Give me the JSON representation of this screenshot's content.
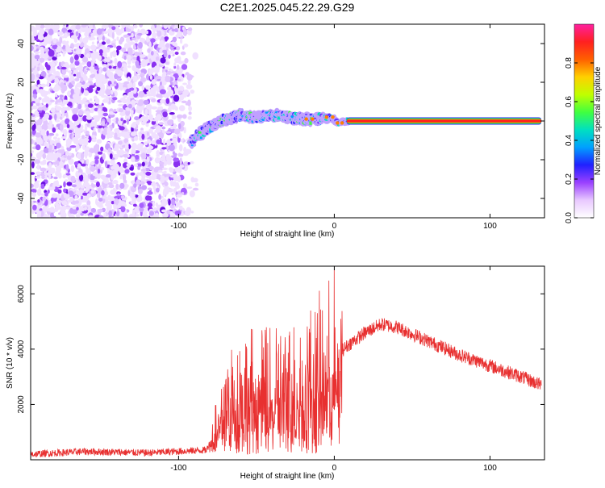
{
  "title": "C2E1.2025.045.22.29.G29",
  "chart_data": [
    {
      "type": "heatmap",
      "xlabel": "Height of straight line (km)",
      "ylabel": "Frequency (Hz)",
      "xlim": [
        -195,
        135
      ],
      "ylim": [
        -50,
        50
      ],
      "x_ticks": [
        -100,
        0,
        100
      ],
      "x_ticklabels": [
        "-100",
        "0",
        "100"
      ],
      "y_ticks": [
        -40,
        -20,
        0,
        20,
        40
      ],
      "y_ticklabels": [
        "-40",
        "-20",
        "0",
        "20",
        "40"
      ],
      "colorbar": {
        "label": "Normalized spectral amplitude",
        "range": [
          0,
          1
        ],
        "ticks": [
          0.0,
          0.2,
          0.4,
          0.6,
          0.8
        ],
        "ticklabels": [
          "0.0",
          "0.2",
          "0.4",
          "0.6",
          "0.8"
        ],
        "colors": [
          "#ffffff",
          "#e8c8ff",
          "#9a40ff",
          "#2020ff",
          "#00a0ff",
          "#00e0c0",
          "#40ff40",
          "#c0ff00",
          "#ffd000",
          "#ff6000",
          "#ff2020",
          "#ff20a0"
        ]
      },
      "noise_region": {
        "x_range": [
          -195,
          -88
        ],
        "y_range": [
          -50,
          50
        ]
      },
      "signal_trace": [
        [
          -92,
          -11
        ],
        [
          -85,
          -6
        ],
        [
          -78,
          -2
        ],
        [
          -70,
          1
        ],
        [
          -60,
          3
        ],
        [
          -50,
          2
        ],
        [
          -40,
          3
        ],
        [
          -30,
          2
        ],
        [
          -20,
          1
        ],
        [
          -10,
          1
        ],
        [
          -2,
          2
        ],
        [
          3,
          -1
        ],
        [
          8,
          0
        ],
        [
          20,
          0
        ],
        [
          60,
          0
        ],
        [
          100,
          0
        ],
        [
          133,
          0
        ]
      ],
      "grid": false
    },
    {
      "type": "line",
      "xlabel": "Height of straight line (km)",
      "ylabel": "SNR (10 * v/v)",
      "xlim": [
        -195,
        135
      ],
      "ylim": [
        0,
        7000
      ],
      "x_ticks": [
        -100,
        0,
        100
      ],
      "x_ticklabels": [
        "-100",
        "0",
        "100"
      ],
      "y_ticks": [
        2000,
        4000,
        6000
      ],
      "y_ticklabels": [
        "2000",
        "4000",
        "6000"
      ],
      "series": [
        {
          "color": "#e83030",
          "envelope": [
            [
              -195,
              200
            ],
            [
              -160,
              300
            ],
            [
              -120,
              250
            ],
            [
              -82,
              350
            ],
            [
              -78,
              900
            ],
            [
              -70,
              2200
            ],
            [
              -60,
              2500
            ],
            [
              -50,
              2600
            ],
            [
              -40,
              2500
            ],
            [
              -30,
              2600
            ],
            [
              -20,
              2800
            ],
            [
              -10,
              3200
            ],
            [
              0,
              3700
            ],
            [
              10,
              4200
            ],
            [
              20,
              4600
            ],
            [
              30,
              4900
            ],
            [
              40,
              4800
            ],
            [
              60,
              4300
            ],
            [
              80,
              3800
            ],
            [
              100,
              3400
            ],
            [
              120,
              3000
            ],
            [
              133,
              2700
            ]
          ]
        }
      ],
      "grid": false
    }
  ]
}
